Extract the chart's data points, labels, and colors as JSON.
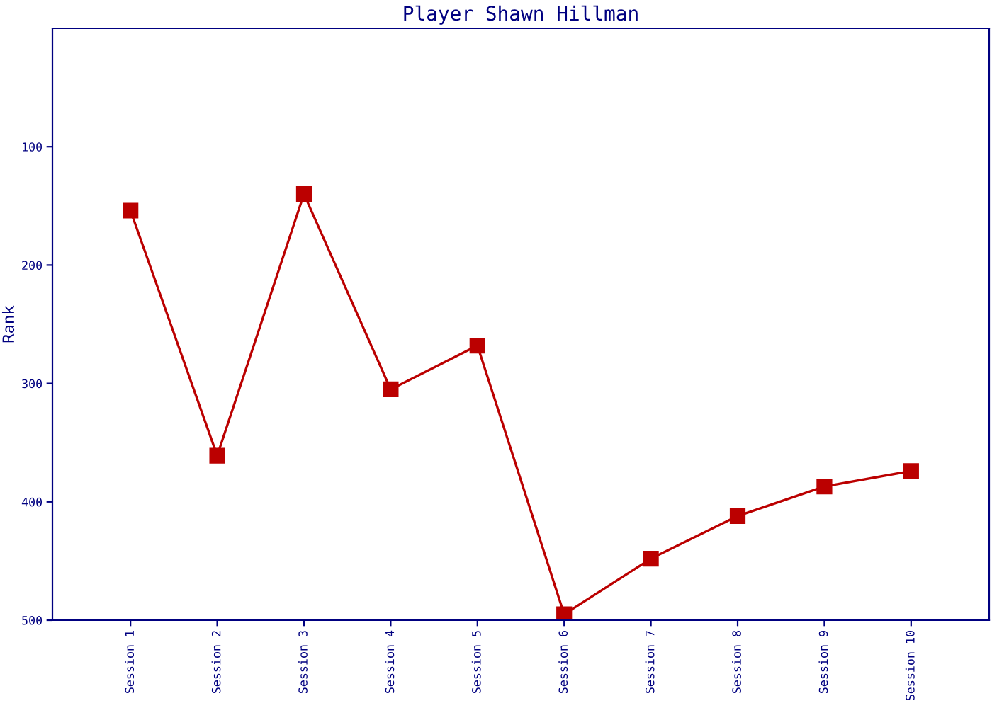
{
  "chart_data": {
    "type": "line",
    "title": "Player Shawn Hillman",
    "ylabel": "Rank",
    "categories": [
      "Session 1",
      "Session 2",
      "Session 3",
      "Session 4",
      "Session 5",
      "Session 6",
      "Session 7",
      "Session 8",
      "Session 9",
      "Session 10"
    ],
    "series": [
      {
        "color": "#bb0000",
        "values": [
          154,
          361,
          140,
          305,
          268,
          495,
          448,
          412,
          387,
          374
        ]
      }
    ],
    "ylim": [
      500,
      0
    ],
    "yticks": [
      100,
      200,
      300,
      400,
      500
    ],
    "marker": "square",
    "line_style": "solid",
    "grid": false,
    "legend": false
  }
}
